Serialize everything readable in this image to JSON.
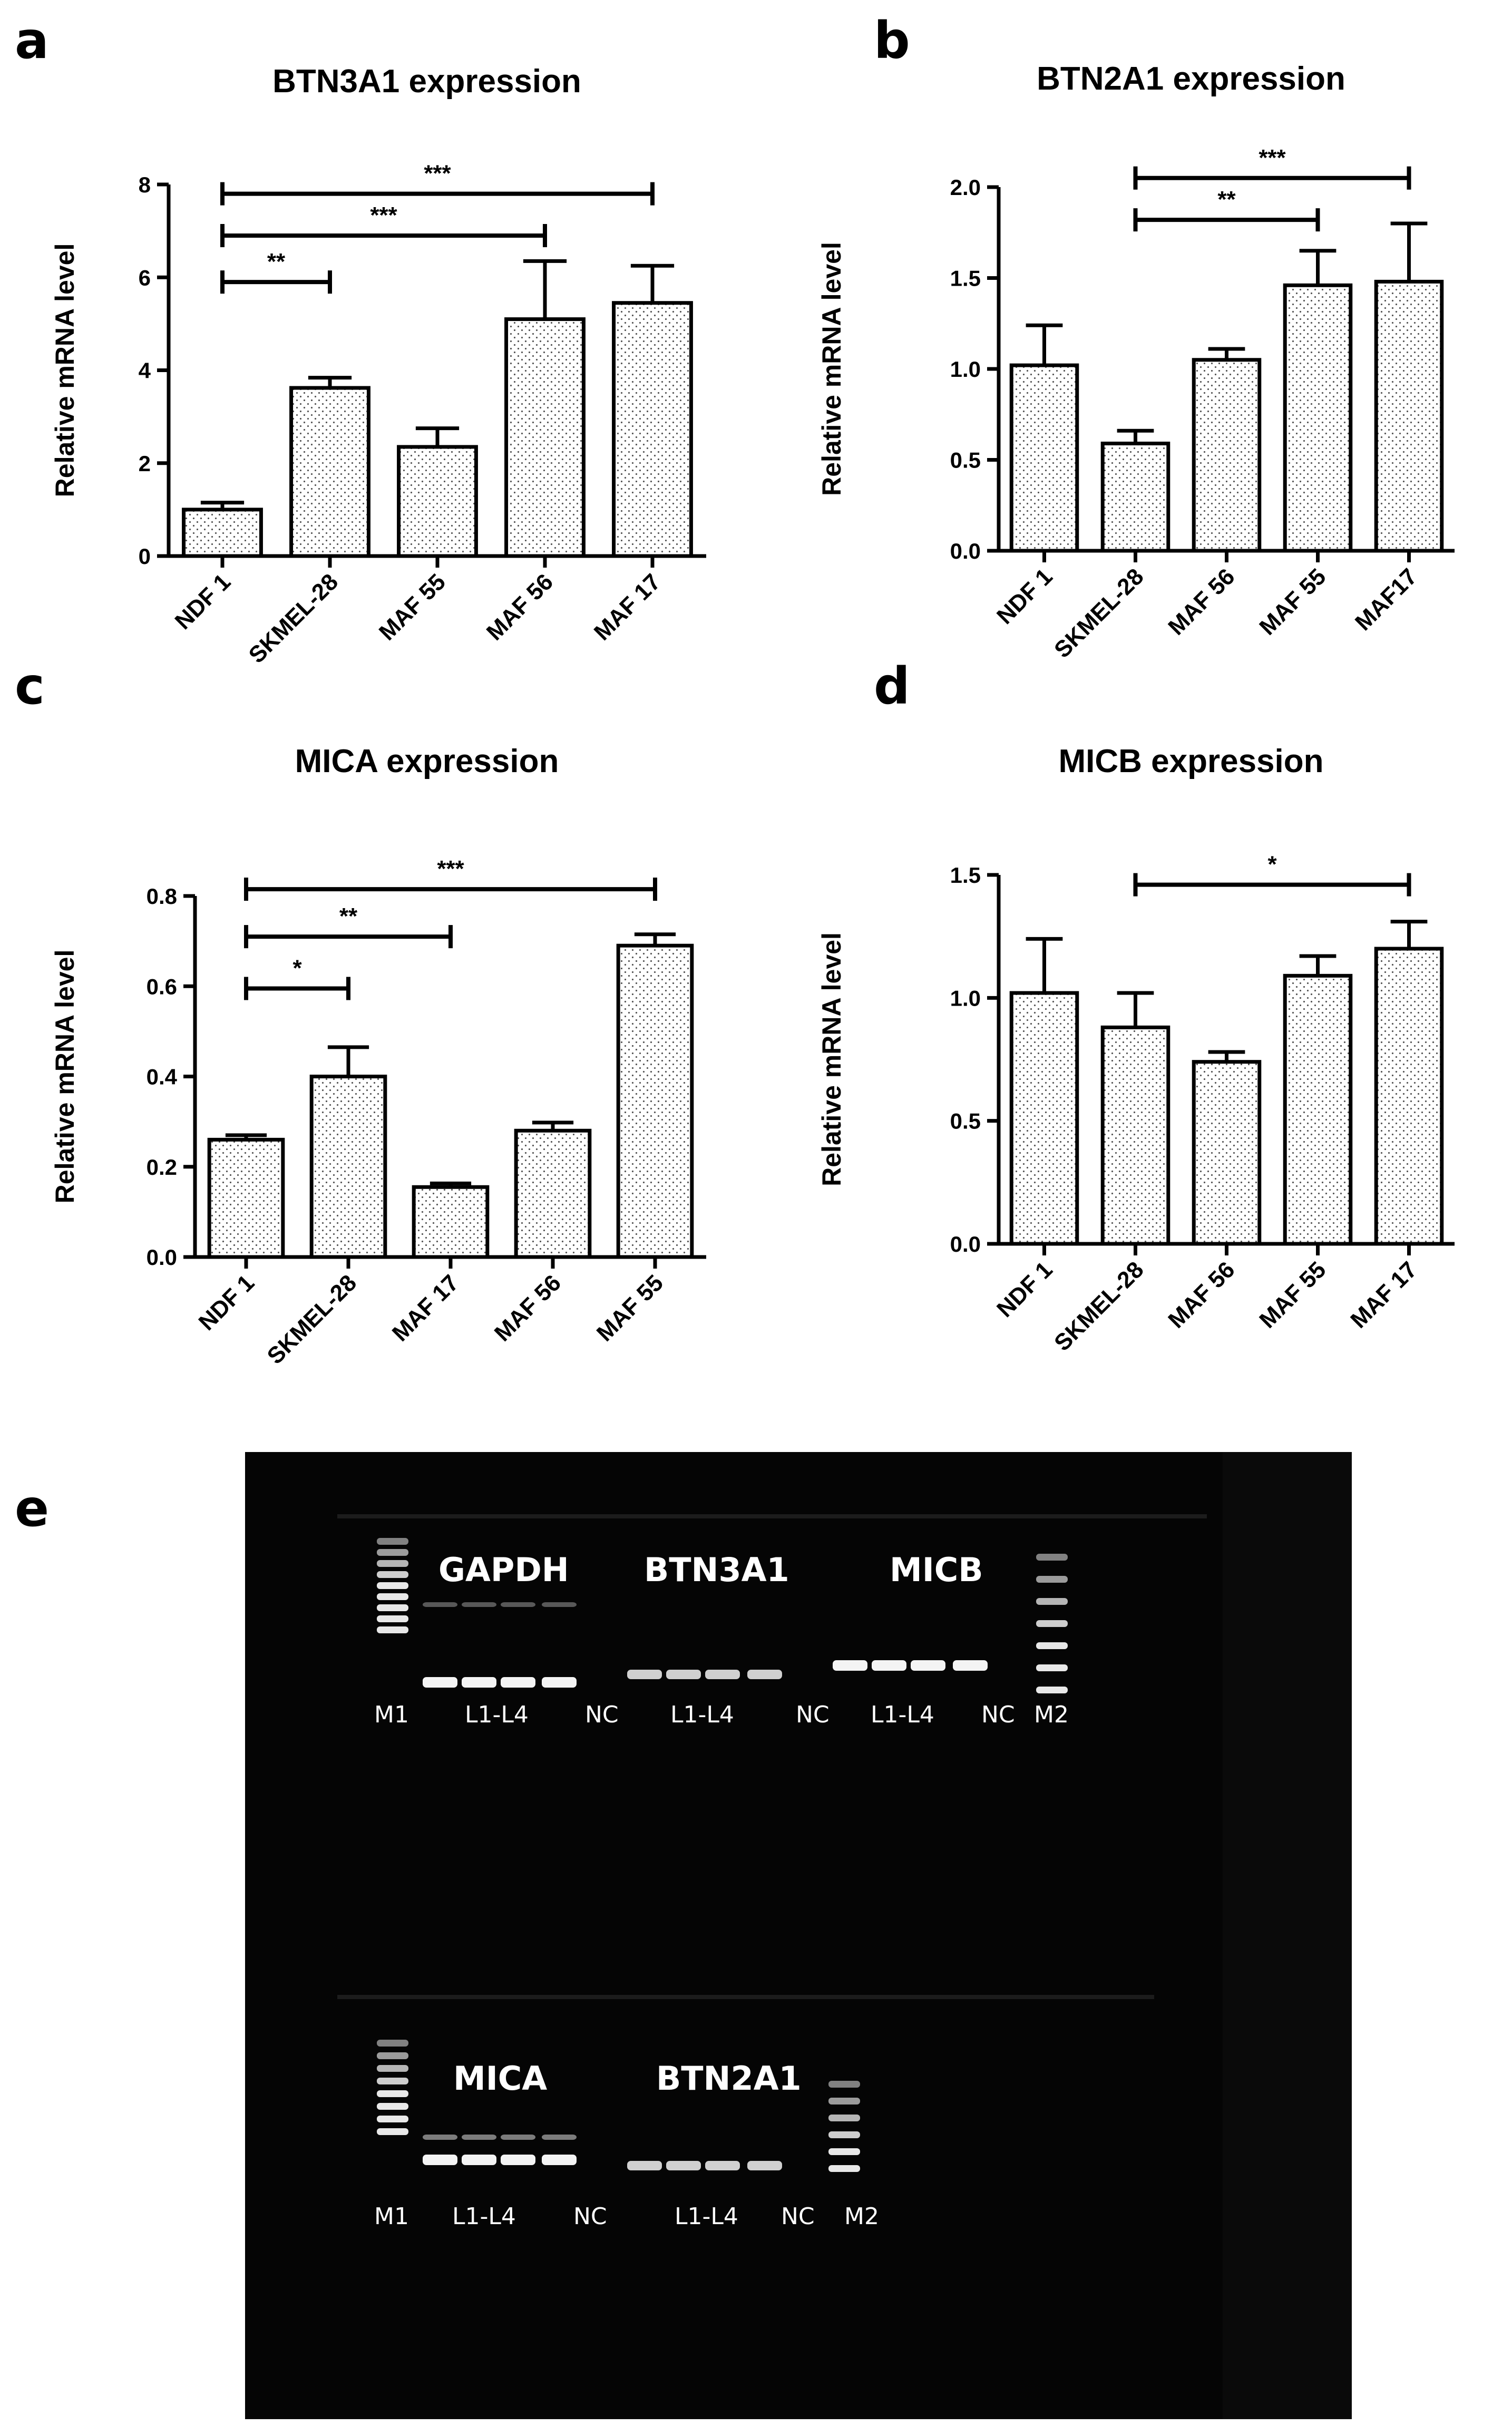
{
  "panels": [
    {
      "letter": "a",
      "chart_data": {
        "type": "bar",
        "title": "BTN3A1 expression",
        "ylabel": "Relative mRNA level",
        "xlabel": "",
        "categories": [
          "NDF 1",
          "SKMEL-28",
          "MAF 55",
          "MAF 56",
          "MAF 17"
        ],
        "values": [
          1.0,
          3.62,
          2.35,
          5.1,
          5.45
        ],
        "errors": [
          0.15,
          0.22,
          0.4,
          1.25,
          0.8
        ],
        "ylim": [
          0,
          8
        ],
        "yticks": [
          "0",
          "2",
          "4",
          "6",
          "8"
        ],
        "yticks_values": [
          0,
          2,
          4,
          6,
          8
        ],
        "significance": [
          {
            "from": 0,
            "to": 1,
            "label": "**",
            "level": 5.9
          },
          {
            "from": 0,
            "to": 3,
            "label": "***",
            "level": 6.9
          },
          {
            "from": 0,
            "to": 4,
            "label": "***",
            "level": 7.8
          }
        ]
      }
    },
    {
      "letter": "b",
      "chart_data": {
        "type": "bar",
        "title": "BTN2A1 expression",
        "ylabel": "Relative mRNA level",
        "xlabel": "",
        "categories": [
          "NDF 1",
          "SKMEL-28",
          "MAF 56",
          "MAF 55",
          "MAF17"
        ],
        "values": [
          1.02,
          0.59,
          1.05,
          1.46,
          1.48
        ],
        "errors": [
          0.22,
          0.07,
          0.06,
          0.19,
          0.32
        ],
        "ylim": [
          0,
          2.0
        ],
        "yticks": [
          "0.0",
          "0.5",
          "1.0",
          "1.5",
          "2.0"
        ],
        "yticks_values": [
          0,
          0.5,
          1.0,
          1.5,
          2.0
        ],
        "significance": [
          {
            "from": 1,
            "to": 3,
            "label": "**",
            "level": 1.82
          },
          {
            "from": 1,
            "to": 4,
            "label": "***",
            "level": 2.05
          }
        ]
      }
    },
    {
      "letter": "c",
      "chart_data": {
        "type": "bar",
        "title": "MICA expression",
        "ylabel": "Relative mRNA level",
        "xlabel": "",
        "categories": [
          "NDF 1",
          "SKMEL-28",
          "MAF 17",
          "MAF 56",
          "MAF 55"
        ],
        "values": [
          0.26,
          0.4,
          0.155,
          0.28,
          0.69
        ],
        "errors": [
          0.01,
          0.065,
          0.008,
          0.018,
          0.025
        ],
        "ylim": [
          0,
          0.8
        ],
        "yticks": [
          "0.0",
          "0.2",
          "0.4",
          "0.6",
          "0.8"
        ],
        "yticks_values": [
          0,
          0.2,
          0.4,
          0.6,
          0.8
        ],
        "significance": [
          {
            "from": 0,
            "to": 1,
            "label": "*",
            "level": 0.595
          },
          {
            "from": 0,
            "to": 2,
            "label": "**",
            "level": 0.71
          },
          {
            "from": 0,
            "to": 4,
            "label": "***",
            "level": 0.815
          }
        ]
      }
    },
    {
      "letter": "d",
      "chart_data": {
        "type": "bar",
        "title": "MICB expression",
        "ylabel": "Relative mRNA level",
        "xlabel": "",
        "categories": [
          "NDF 1",
          "SKMEL-28",
          "MAF 56",
          "MAF 55",
          "MAF 17"
        ],
        "values": [
          1.02,
          0.88,
          0.74,
          1.09,
          1.2
        ],
        "errors": [
          0.22,
          0.14,
          0.04,
          0.08,
          0.11
        ],
        "ylim": [
          0,
          1.5
        ],
        "yticks": [
          "0.0",
          "0.5",
          "1.0",
          "1.5"
        ],
        "yticks_values": [
          0,
          0.5,
          1.0,
          1.5
        ],
        "significance": [
          {
            "from": 1,
            "to": 4,
            "label": "*",
            "level": 1.46
          }
        ]
      }
    }
  ],
  "gel": {
    "letter": "e",
    "top_row": {
      "genes": [
        "GAPDH",
        "BTN3A1",
        "MICB"
      ],
      "lane_labels": [
        "M1",
        "L1-L4",
        "NC",
        "L1-L4",
        "NC",
        "L1-L4",
        "NC",
        "M2"
      ]
    },
    "bottom_row": {
      "genes": [
        "MICA",
        "BTN2A1"
      ],
      "lane_labels": [
        "M1",
        "L1-L4",
        "NC",
        "L1-L4",
        "NC",
        "M2"
      ]
    },
    "colors": {
      "background": "#050505",
      "band": "#f4f4f4",
      "text": "#ffffff"
    }
  }
}
